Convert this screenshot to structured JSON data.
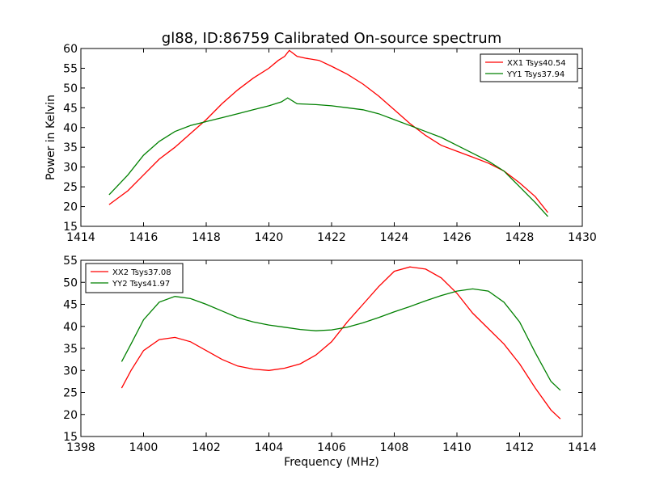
{
  "chart_data": [
    {
      "type": "line",
      "title": "gl88, ID:86759 Calibrated On-source spectrum",
      "xlabel": "",
      "ylabel": "Power in Kelvin",
      "xlim": [
        1414,
        1430
      ],
      "ylim": [
        15,
        60
      ],
      "xticks": [
        1414,
        1416,
        1418,
        1420,
        1422,
        1424,
        1426,
        1428,
        1430
      ],
      "yticks": [
        15,
        20,
        25,
        30,
        35,
        40,
        45,
        50,
        55,
        60
      ],
      "grid": false,
      "legend": "top-right",
      "series": [
        {
          "name": "XX1 Tsys40.54",
          "color": "#ff0000",
          "points": [
            [
              1414.9,
              20.5
            ],
            [
              1415.5,
              24
            ],
            [
              1416,
              28
            ],
            [
              1416.5,
              32
            ],
            [
              1417,
              35
            ],
            [
              1417.5,
              38.5
            ],
            [
              1418,
              42
            ],
            [
              1418.5,
              46
            ],
            [
              1419,
              49.5
            ],
            [
              1419.5,
              52.5
            ],
            [
              1420,
              55
            ],
            [
              1420.3,
              57
            ],
            [
              1420.5,
              58
            ],
            [
              1420.65,
              59.5
            ],
            [
              1420.9,
              58
            ],
            [
              1421.2,
              57.5
            ],
            [
              1421.6,
              57
            ],
            [
              1422,
              55.5
            ],
            [
              1422.5,
              53.5
            ],
            [
              1423,
              51
            ],
            [
              1423.5,
              48
            ],
            [
              1424,
              44.5
            ],
            [
              1424.5,
              41
            ],
            [
              1425,
              38
            ],
            [
              1425.5,
              35.5
            ],
            [
              1426,
              34
            ],
            [
              1426.5,
              32.5
            ],
            [
              1427,
              31
            ],
            [
              1427.5,
              29
            ],
            [
              1428,
              26
            ],
            [
              1428.5,
              22.5
            ],
            [
              1428.9,
              18.5
            ]
          ]
        },
        {
          "name": "YY1 Tsys37.94",
          "color": "#008000",
          "points": [
            [
              1414.9,
              23
            ],
            [
              1415.5,
              28
            ],
            [
              1416,
              33
            ],
            [
              1416.5,
              36.5
            ],
            [
              1417,
              39
            ],
            [
              1417.5,
              40.5
            ],
            [
              1418,
              41.5
            ],
            [
              1418.5,
              42.5
            ],
            [
              1419,
              43.5
            ],
            [
              1419.5,
              44.5
            ],
            [
              1420,
              45.5
            ],
            [
              1420.4,
              46.5
            ],
            [
              1420.6,
              47.5
            ],
            [
              1420.9,
              46
            ],
            [
              1421.5,
              45.8
            ],
            [
              1422,
              45.5
            ],
            [
              1422.5,
              45
            ],
            [
              1423,
              44.5
            ],
            [
              1423.5,
              43.5
            ],
            [
              1424,
              42
            ],
            [
              1424.5,
              40.5
            ],
            [
              1425,
              39
            ],
            [
              1425.5,
              37.5
            ],
            [
              1426,
              35.5
            ],
            [
              1426.5,
              33.5
            ],
            [
              1427,
              31.5
            ],
            [
              1427.5,
              29
            ],
            [
              1428,
              25
            ],
            [
              1428.5,
              21
            ],
            [
              1428.9,
              17.5
            ]
          ]
        }
      ]
    },
    {
      "type": "line",
      "title": "",
      "xlabel": "Frequency (MHz)",
      "ylabel": "",
      "xlim": [
        1398,
        1414
      ],
      "ylim": [
        15,
        55
      ],
      "xticks": [
        1398,
        1400,
        1402,
        1404,
        1406,
        1408,
        1410,
        1412,
        1414
      ],
      "yticks": [
        15,
        20,
        25,
        30,
        35,
        40,
        45,
        50,
        55
      ],
      "grid": false,
      "legend": "top-left",
      "series": [
        {
          "name": "XX2 Tsys37.08",
          "color": "#ff0000",
          "points": [
            [
              1399.3,
              26
            ],
            [
              1399.6,
              30
            ],
            [
              1400,
              34.5
            ],
            [
              1400.5,
              37
            ],
            [
              1401,
              37.5
            ],
            [
              1401.5,
              36.5
            ],
            [
              1402,
              34.5
            ],
            [
              1402.5,
              32.5
            ],
            [
              1403,
              31
            ],
            [
              1403.5,
              30.3
            ],
            [
              1404,
              30
            ],
            [
              1404.5,
              30.5
            ],
            [
              1405,
              31.5
            ],
            [
              1405.5,
              33.5
            ],
            [
              1406,
              36.5
            ],
            [
              1406.5,
              41
            ],
            [
              1407,
              45
            ],
            [
              1407.5,
              49
            ],
            [
              1408,
              52.5
            ],
            [
              1408.5,
              53.5
            ],
            [
              1409,
              53
            ],
            [
              1409.5,
              51
            ],
            [
              1410,
              47.5
            ],
            [
              1410.5,
              43
            ],
            [
              1411,
              39.5
            ],
            [
              1411.5,
              36
            ],
            [
              1412,
              31.5
            ],
            [
              1412.5,
              26
            ],
            [
              1413,
              21
            ],
            [
              1413.3,
              19
            ]
          ]
        },
        {
          "name": "YY2 Tsys41.97",
          "color": "#008000",
          "points": [
            [
              1399.3,
              32
            ],
            [
              1399.6,
              36
            ],
            [
              1400,
              41.5
            ],
            [
              1400.5,
              45.5
            ],
            [
              1401,
              46.8
            ],
            [
              1401.5,
              46.3
            ],
            [
              1402,
              45
            ],
            [
              1402.5,
              43.5
            ],
            [
              1403,
              42
            ],
            [
              1403.5,
              41
            ],
            [
              1404,
              40.3
            ],
            [
              1404.5,
              39.8
            ],
            [
              1405,
              39.3
            ],
            [
              1405.5,
              39
            ],
            [
              1406,
              39.2
            ],
            [
              1406.5,
              39.8
            ],
            [
              1407,
              40.8
            ],
            [
              1407.5,
              42
            ],
            [
              1408,
              43.3
            ],
            [
              1408.5,
              44.5
            ],
            [
              1409,
              45.8
            ],
            [
              1409.5,
              47
            ],
            [
              1410,
              48
            ],
            [
              1410.5,
              48.5
            ],
            [
              1411,
              48
            ],
            [
              1411.5,
              45.5
            ],
            [
              1412,
              41
            ],
            [
              1412.5,
              34
            ],
            [
              1413,
              27.5
            ],
            [
              1413.3,
              25.5
            ]
          ]
        }
      ]
    }
  ]
}
